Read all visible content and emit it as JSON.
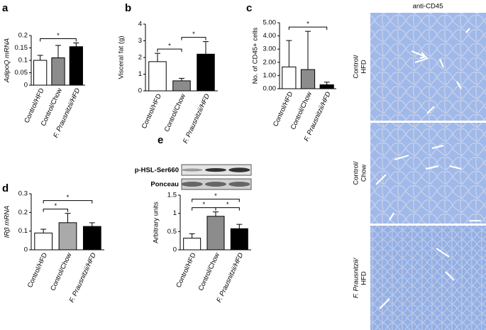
{
  "chart_data": [
    {
      "panel": "a",
      "type": "bar",
      "ylabel": "AdipoQ mRNA",
      "categories": [
        "Control/HFD",
        "Control/Chow",
        "F. Prausnitzii/HFD"
      ],
      "values": [
        0.1,
        0.11,
        0.155
      ],
      "errors": [
        0.02,
        0.05,
        0.015
      ],
      "colors": [
        "#ffffff",
        "#8c8c8c",
        "#000000"
      ],
      "ylim": [
        0,
        0.2
      ],
      "yticks": [
        0,
        0.05,
        0.1,
        0.15,
        0.2
      ],
      "significance": [
        {
          "from": 0,
          "to": 2,
          "label": "*"
        }
      ]
    },
    {
      "panel": "b",
      "type": "bar",
      "ylabel": "Visceral fat (g)",
      "categories": [
        "Control/HFD",
        "Control/Chow",
        "F. Prausnitzii/HFD"
      ],
      "values": [
        1.75,
        0.6,
        2.2
      ],
      "errors": [
        0.5,
        0.15,
        0.75
      ],
      "colors": [
        "#ffffff",
        "#8c8c8c",
        "#000000"
      ],
      "ylim": [
        0,
        4
      ],
      "yticks": [
        0,
        1,
        2,
        3,
        4
      ],
      "significance": [
        {
          "from": 0,
          "to": 1,
          "label": "*"
        },
        {
          "from": 1,
          "to": 2,
          "label": "*"
        }
      ]
    },
    {
      "panel": "c",
      "type": "bar",
      "ylabel": "No. of  CD45+ cells",
      "categories": [
        "Control/HFD",
        "Control/Chow",
        "F. Prausnitzii/HFD"
      ],
      "values": [
        1.65,
        1.45,
        0.3
      ],
      "errors": [
        2.0,
        2.9,
        0.2
      ],
      "colors": [
        "#ffffff",
        "#8c8c8c",
        "#000000"
      ],
      "ylim": [
        0,
        5
      ],
      "yticks": [
        {
          "value": 0,
          "label": "0.00"
        },
        {
          "value": 1,
          "label": "1.00"
        },
        {
          "value": 2,
          "label": "2.00"
        },
        {
          "value": 3,
          "label": "3.00"
        },
        {
          "value": 4,
          "label": "4.00"
        },
        {
          "value": 5,
          "label": "5.00"
        }
      ],
      "significance": [
        {
          "from": 0,
          "to": 2,
          "label": "*"
        }
      ]
    },
    {
      "panel": "d",
      "type": "bar",
      "ylabel": "IRβ  mRNA",
      "categories": [
        "Control/HFD",
        "Control/Chow",
        "F. Prausnitzii/HFD"
      ],
      "values": [
        0.09,
        0.145,
        0.125
      ],
      "errors": [
        0.02,
        0.05,
        0.02
      ],
      "colors": [
        "#ffffff",
        "#aaaaaa",
        "#000000"
      ],
      "ylim": [
        0,
        0.3
      ],
      "yticks": [
        0,
        0.1,
        0.2,
        0.3
      ],
      "significance": [
        {
          "from": 0,
          "to": 1,
          "label": "*"
        },
        {
          "from": 0,
          "to": 2,
          "label": "*"
        }
      ]
    },
    {
      "panel": "e",
      "type": "bar",
      "ylabel": "Arbitrary units",
      "blot_labels": [
        "p-HSL-Ser660",
        "Ponceau"
      ],
      "categories": [
        "Control/HFD",
        "Control/Chow",
        "F. Prausnitzii/HFD"
      ],
      "values": [
        0.32,
        0.92,
        0.58
      ],
      "errors": [
        0.12,
        0.12,
        0.12
      ],
      "colors": [
        "#ffffff",
        "#8c8c8c",
        "#000000"
      ],
      "ylim": [
        0,
        1.5
      ],
      "yticks": [
        0,
        0.5,
        1,
        1.5
      ],
      "significance": [
        {
          "from": 0,
          "to": 1,
          "label": "*"
        },
        {
          "from": 1,
          "to": 2,
          "label": "*"
        },
        {
          "from": 0,
          "to": 2,
          "label": "*"
        }
      ]
    }
  ],
  "micrographs": {
    "title": "anti-CD45",
    "labels": [
      [
        "Control/",
        "HFD"
      ],
      [
        "Control/",
        "Chow"
      ],
      [
        "F. Prausnitzii/",
        "HFD"
      ]
    ]
  }
}
